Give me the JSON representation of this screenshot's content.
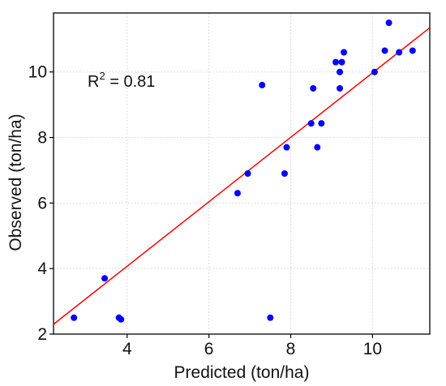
{
  "chart_data": {
    "type": "scatter",
    "title": "",
    "xlabel": "Predicted (ton/ha)",
    "ylabel": "Observed (ton/ha)",
    "xlim": [
      2.2,
      11.4
    ],
    "ylim": [
      2.0,
      11.8
    ],
    "xticks": [
      4,
      6,
      8,
      10
    ],
    "yticks": [
      2,
      4,
      6,
      8,
      10
    ],
    "xtick_labels": [
      "4",
      "6",
      "8",
      "10"
    ],
    "ytick_labels": [
      "2",
      "4",
      "6",
      "8",
      "10"
    ],
    "grid": true,
    "annotation": {
      "base": "R",
      "sup": "2",
      "rest": " = 0.81"
    },
    "point_color": "#0000ff",
    "line_color": "#ff0000",
    "points": [
      {
        "x": 2.7,
        "y": 2.5
      },
      {
        "x": 3.45,
        "y": 3.7
      },
      {
        "x": 3.8,
        "y": 2.5
      },
      {
        "x": 3.85,
        "y": 2.45
      },
      {
        "x": 6.7,
        "y": 6.3
      },
      {
        "x": 6.95,
        "y": 6.9
      },
      {
        "x": 7.3,
        "y": 9.6
      },
      {
        "x": 7.5,
        "y": 2.5
      },
      {
        "x": 7.85,
        "y": 6.9
      },
      {
        "x": 7.9,
        "y": 7.7
      },
      {
        "x": 8.5,
        "y": 8.43
      },
      {
        "x": 8.55,
        "y": 9.5
      },
      {
        "x": 8.65,
        "y": 7.7
      },
      {
        "x": 8.75,
        "y": 8.43
      },
      {
        "x": 9.1,
        "y": 10.3
      },
      {
        "x": 9.2,
        "y": 9.5
      },
      {
        "x": 9.2,
        "y": 10.0
      },
      {
        "x": 9.25,
        "y": 10.3
      },
      {
        "x": 9.3,
        "y": 10.6
      },
      {
        "x": 10.05,
        "y": 10.0
      },
      {
        "x": 10.3,
        "y": 10.65
      },
      {
        "x": 10.4,
        "y": 11.5
      },
      {
        "x": 10.65,
        "y": 10.6
      },
      {
        "x": 10.98,
        "y": 10.65
      }
    ],
    "fit_line": {
      "x": [
        2.2,
        11.4
      ],
      "y": [
        2.3,
        11.35
      ]
    }
  }
}
